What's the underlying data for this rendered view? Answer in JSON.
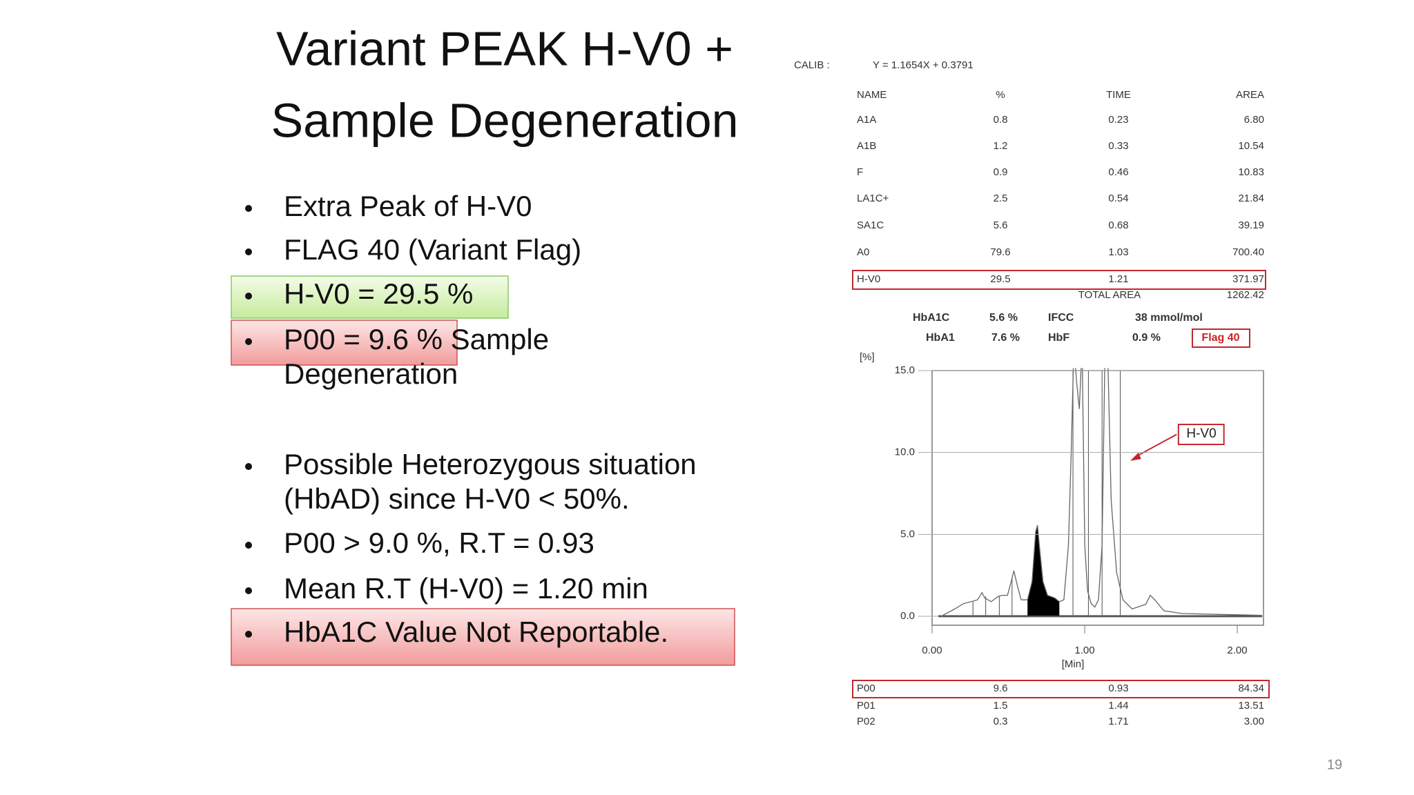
{
  "title": [
    "Variant PEAK H-V0 +",
    "Sample Degeneration"
  ],
  "bullets": [
    [
      "Extra Peak of H-V0"
    ],
    [
      "FLAG 40 (Variant Flag)"
    ],
    [
      "H-V0  = 29.5 %"
    ],
    [
      "P00 = 9.6 % Sample",
      "Degeneration"
    ],
    [
      "Possible Heterozygous situation",
      "(HbAD) since H-V0 < 50%."
    ],
    [
      "P00 > 9.0 %, R.T = 0.93"
    ],
    [
      "Mean R.T (H-V0) = 1.20 min"
    ],
    [
      "HbA1C Value Not Reportable."
    ]
  ],
  "report": {
    "calib_label": "CALIB :",
    "calib": "Y = 1.1654X + 0.3791",
    "columns": [
      "NAME",
      "%",
      "TIME",
      "AREA"
    ],
    "rows": [
      [
        "A1A",
        "0.8",
        "0.23",
        "6.80"
      ],
      [
        "A1B",
        "1.2",
        "0.33",
        "10.54"
      ],
      [
        "F",
        "0.9",
        "0.46",
        "10.83"
      ],
      [
        "LA1C+",
        "2.5",
        "0.54",
        "21.84"
      ],
      [
        "SA1C",
        "5.6",
        "0.68",
        "39.19"
      ],
      [
        "A0",
        "79.6",
        "1.03",
        "700.40"
      ],
      [
        "H-V0",
        "29.5",
        "1.21",
        "371.97"
      ]
    ],
    "total_area_label": "TOTAL AREA",
    "total_area": "1262.42",
    "summary": [
      [
        "HbA1C",
        "5.6 %",
        "IFCC",
        "38 mmol/mol"
      ],
      [
        "HbA1",
        "7.6 %",
        "HbF",
        "0.9 %",
        "Flag 40"
      ]
    ],
    "peaks": [
      [
        "P00",
        "9.6",
        "0.93",
        "84.34"
      ],
      [
        "P01",
        "1.5",
        "1.44",
        "13.51"
      ],
      [
        "P02",
        "0.3",
        "1.71",
        "3.00"
      ]
    ]
  },
  "chromatogram": {
    "y_unit": "[%]",
    "x_unit": "[Min]",
    "yticks": [
      {
        "value": 15,
        "label": "15.0"
      },
      {
        "value": 10,
        "label": "10.0"
      },
      {
        "value": 5,
        "label": "5.0"
      },
      {
        "value": 0,
        "label": "0.0"
      }
    ],
    "xticks": [
      {
        "value": 0,
        "label": "0.00"
      },
      {
        "value": 1,
        "label": "1.00"
      },
      {
        "value": 2,
        "label": "2.00"
      }
    ],
    "annotation": "H-V0"
  },
  "page_number": "19"
}
